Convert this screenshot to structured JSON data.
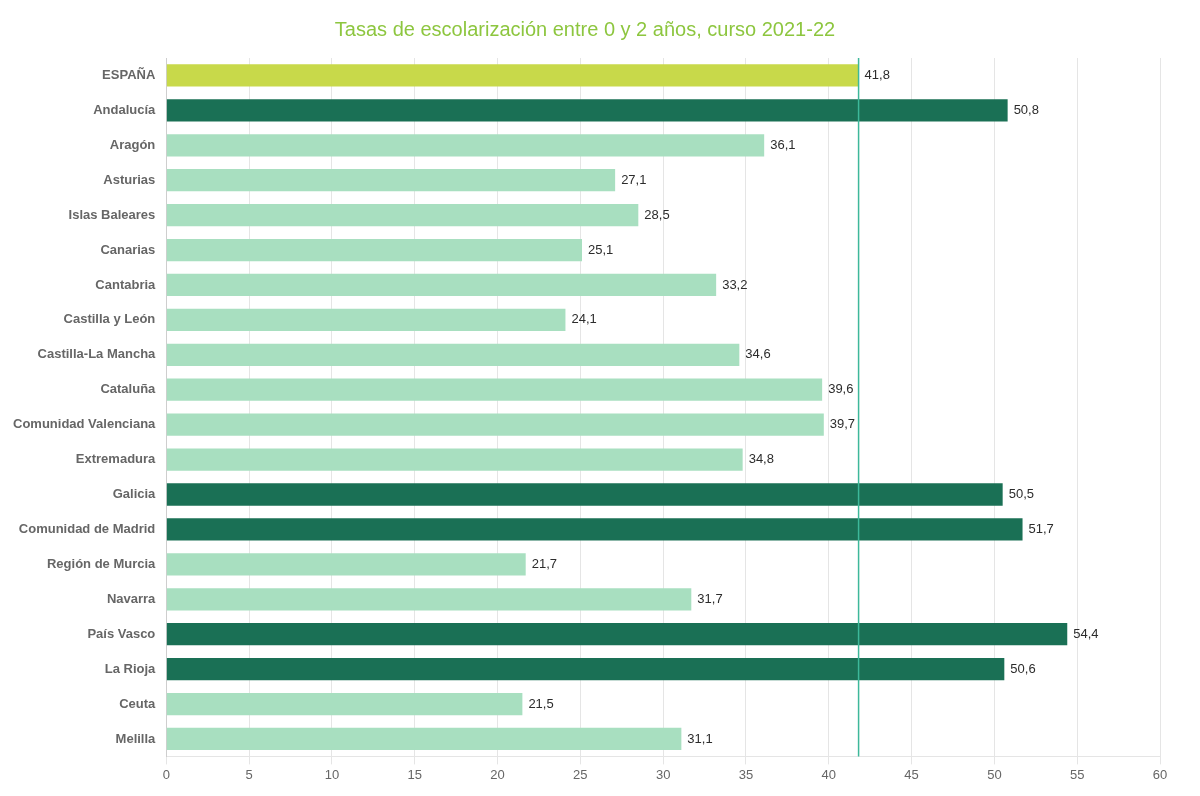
{
  "chart_data": {
    "type": "bar",
    "orientation": "horizontal",
    "title": "Tasas de escolarización entre 0 y 2 años, curso 2021-22",
    "categories": [
      "ESPAÑA",
      "Andalucía",
      "Aragón",
      "Asturias",
      "Islas Baleares",
      "Canarias",
      "Cantabria",
      "Castilla y León",
      "Castilla-La Mancha",
      "Cataluña",
      "Comunidad Valenciana",
      "Extremadura",
      "Galicia",
      "Comunidad de Madrid",
      "Región de Murcia",
      "Navarra",
      "País Vasco",
      "La Rioja",
      "Ceuta",
      "Melilla"
    ],
    "values": [
      41.8,
      50.8,
      36.1,
      27.1,
      28.5,
      25.1,
      33.2,
      24.1,
      34.6,
      39.6,
      39.7,
      34.8,
      50.5,
      51.7,
      21.7,
      31.7,
      54.4,
      50.6,
      21.5,
      31.1
    ],
    "value_labels": [
      "41,8",
      "50,8",
      "36,1",
      "27,1",
      "28,5",
      "25,1",
      "33,2",
      "24,1",
      "34,6",
      "39,6",
      "39,7",
      "34,8",
      "50,5",
      "51,7",
      "21,7",
      "31,7",
      "54,4",
      "50,6",
      "21,5",
      "31,1"
    ],
    "data_labels": true,
    "colors": [
      "#c8d94a",
      "#1a7055",
      "#a8dfc0",
      "#a8dfc0",
      "#a8dfc0",
      "#a8dfc0",
      "#a8dfc0",
      "#a8dfc0",
      "#a8dfc0",
      "#a8dfc0",
      "#a8dfc0",
      "#a8dfc0",
      "#1a7055",
      "#1a7055",
      "#a8dfc0",
      "#a8dfc0",
      "#1a7055",
      "#1a7055",
      "#a8dfc0",
      "#a8dfc0"
    ],
    "xlim": [
      0,
      60
    ],
    "xticks": [
      0,
      5,
      10,
      15,
      20,
      25,
      30,
      35,
      40,
      45,
      50,
      55,
      60
    ],
    "vline_x": 41.8,
    "vline_color": "#3db89a",
    "grid": true
  }
}
